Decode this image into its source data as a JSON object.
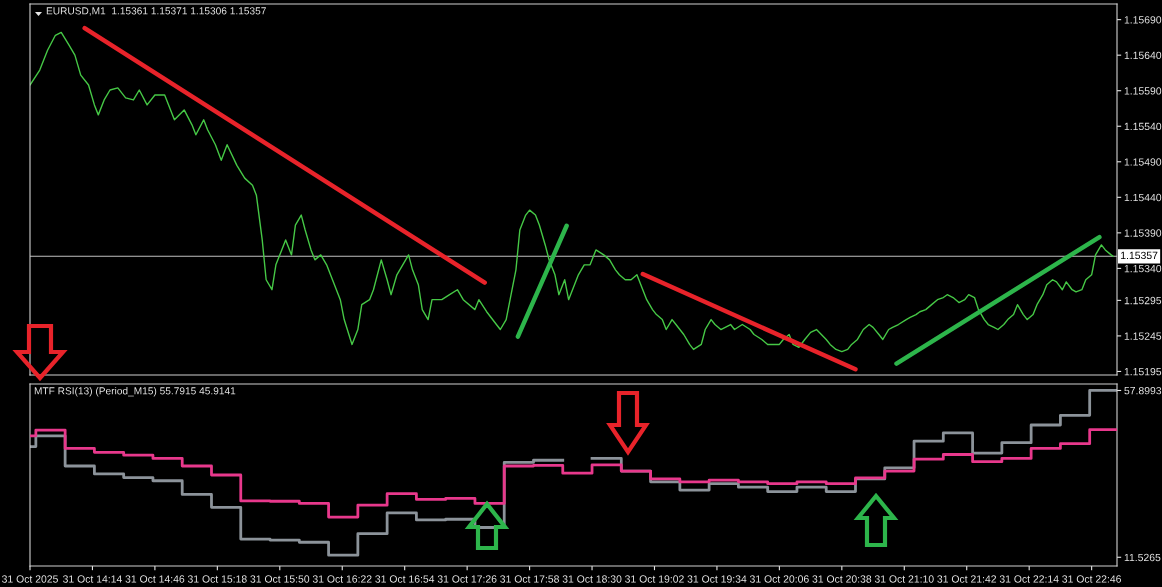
{
  "chart_data": [
    {
      "type": "line",
      "title": "EURUSD,M1  1.15361 1.15371 1.15306 1.15357",
      "tick_labels": "y",
      "grid": false,
      "marker": "none",
      "line_style": "solid",
      "xlim": [
        "2025-10-31T13:42",
        "2025-10-31T22:59"
      ],
      "ylim": [
        1.1519,
        1.15712
      ],
      "yticks": [
        {
          "value": 1.1569,
          "label": "1.15690"
        },
        {
          "value": 1.1564,
          "label": "1.15640"
        },
        {
          "value": 1.1559,
          "label": "1.15590"
        },
        {
          "value": 1.1554,
          "label": "1.15540"
        },
        {
          "value": 1.1549,
          "label": "1.15490"
        },
        {
          "value": 1.1544,
          "label": "1.15440"
        },
        {
          "value": 1.1539,
          "label": "1.15390"
        },
        {
          "value": 1.1534,
          "label": "1.15340"
        },
        {
          "value": 1.15295,
          "label": "1.15295"
        },
        {
          "value": 1.15245,
          "label": "1.15245"
        },
        {
          "value": 1.15195,
          "label": "1.15195"
        }
      ],
      "ref_lines": [
        {
          "axis": "y",
          "value": 1.15357,
          "label": "1.15357",
          "color": "#c0c0c0"
        }
      ],
      "series": [
        {
          "color": "#46c846",
          "x": [
            "2025-10-31T13:42",
            "2025-10-31T13:47",
            "2025-10-31T13:51",
            "2025-10-31T13:55",
            "2025-10-31T13:58",
            "2025-10-31T14:02",
            "2025-10-31T14:05",
            "2025-10-31T14:08",
            "2025-10-31T14:12",
            "2025-10-31T14:15",
            "2025-10-31T14:17",
            "2025-10-31T14:20",
            "2025-10-31T14:23",
            "2025-10-31T14:27",
            "2025-10-31T14:31",
            "2025-10-31T14:35",
            "2025-10-31T14:38",
            "2025-10-31T14:42",
            "2025-10-31T14:46",
            "2025-10-31T14:51",
            "2025-10-31T14:56",
            "2025-10-31T15:01",
            "2025-10-31T15:05",
            "2025-10-31T15:07",
            "2025-10-31T15:11",
            "2025-10-31T15:13",
            "2025-10-31T15:17",
            "2025-10-31T15:20",
            "2025-10-31T15:23",
            "2025-10-31T15:28",
            "2025-10-31T15:32",
            "2025-10-31T15:36",
            "2025-10-31T15:38",
            "2025-10-31T15:41",
            "2025-10-31T15:43",
            "2025-10-31T15:46",
            "2025-10-31T15:48",
            "2025-10-31T15:51",
            "2025-10-31T15:53",
            "2025-10-31T15:56",
            "2025-10-31T15:58",
            "2025-10-31T16:01",
            "2025-10-31T16:03",
            "2025-10-31T16:06",
            "2025-10-31T16:08",
            "2025-10-31T16:11",
            "2025-10-31T16:14",
            "2025-10-31T16:17",
            "2025-10-31T16:21",
            "2025-10-31T16:23",
            "2025-10-31T16:27",
            "2025-10-31T16:30",
            "2025-10-31T16:32",
            "2025-10-31T16:36",
            "2025-10-31T16:38",
            "2025-10-31T16:42",
            "2025-10-31T16:45",
            "2025-10-31T16:47",
            "2025-10-31T16:50",
            "2025-10-31T16:53",
            "2025-10-31T16:56",
            "2025-10-31T16:58",
            "2025-10-31T17:01",
            "2025-10-31T17:03",
            "2025-10-31T17:06",
            "2025-10-31T17:08",
            "2025-10-31T17:13",
            "2025-10-31T17:17",
            "2025-10-31T17:21",
            "2025-10-31T17:24",
            "2025-10-31T17:30",
            "2025-10-31T17:32",
            "2025-10-31T17:36",
            "2025-10-31T17:41",
            "2025-10-31T17:43",
            "2025-10-31T17:46",
            "2025-10-31T17:48",
            "2025-10-31T17:51",
            "2025-10-31T17:53",
            "2025-10-31T17:56",
            "2025-10-31T17:58",
            "2025-10-31T18:01",
            "2025-10-31T18:03",
            "2025-10-31T18:06",
            "2025-10-31T18:08",
            "2025-10-31T18:11",
            "2025-10-31T18:13",
            "2025-10-31T18:16",
            "2025-10-31T18:18",
            "2025-10-31T18:21",
            "2025-10-31T18:23",
            "2025-10-31T18:26",
            "2025-10-31T18:29",
            "2025-10-31T18:32",
            "2025-10-31T18:36",
            "2025-10-31T18:39",
            "2025-10-31T18:42",
            "2025-10-31T18:44",
            "2025-10-31T18:47",
            "2025-10-31T18:50",
            "2025-10-31T18:53",
            "2025-10-31T18:56",
            "2025-10-31T18:58",
            "2025-10-31T19:01",
            "2025-10-31T19:03",
            "2025-10-31T19:06",
            "2025-10-31T19:08",
            "2025-10-31T19:11",
            "2025-10-31T19:13",
            "2025-10-31T19:17",
            "2025-10-31T19:20",
            "2025-10-31T19:22",
            "2025-10-31T19:26",
            "2025-10-31T19:28",
            "2025-10-31T19:31",
            "2025-10-31T19:33",
            "2025-10-31T19:36",
            "2025-10-31T19:41",
            "2025-10-31T19:43",
            "2025-10-31T19:47",
            "2025-10-31T19:51",
            "2025-10-31T19:53",
            "2025-10-31T19:57",
            "2025-10-31T20:00",
            "2025-10-31T20:06",
            "2025-10-31T20:08",
            "2025-10-31T20:11",
            "2025-10-31T20:13",
            "2025-10-31T20:16",
            "2025-10-31T20:19",
            "2025-10-31T20:22",
            "2025-10-31T20:25",
            "2025-10-31T20:30",
            "2025-10-31T20:32",
            "2025-10-31T20:35",
            "2025-10-31T20:38",
            "2025-10-31T20:41",
            "2025-10-31T20:43",
            "2025-10-31T20:46",
            "2025-10-31T20:49",
            "2025-10-31T20:52",
            "2025-10-31T20:54",
            "2025-10-31T20:57",
            "2025-10-31T20:59",
            "2025-10-31T21:02",
            "2025-10-31T21:04",
            "2025-10-31T21:07",
            "2025-10-31T21:11",
            "2025-10-31T21:13",
            "2025-10-31T21:16",
            "2025-10-31T21:18",
            "2025-10-31T21:21",
            "2025-10-31T21:24",
            "2025-10-31T21:27",
            "2025-10-31T21:30",
            "2025-10-31T21:32",
            "2025-10-31T21:35",
            "2025-10-31T21:38",
            "2025-10-31T21:41",
            "2025-10-31T21:43",
            "2025-10-31T21:46",
            "2025-10-31T21:48",
            "2025-10-31T21:51",
            "2025-10-31T21:53",
            "2025-10-31T21:56",
            "2025-10-31T21:58",
            "2025-10-31T22:01",
            "2025-10-31T22:03",
            "2025-10-31T22:06",
            "2025-10-31T22:08",
            "2025-10-31T22:11",
            "2025-10-31T22:13",
            "2025-10-31T22:16",
            "2025-10-31T22:18",
            "2025-10-31T22:21",
            "2025-10-31T22:23",
            "2025-10-31T22:26",
            "2025-10-31T22:28",
            "2025-10-31T22:31",
            "2025-10-31T22:33",
            "2025-10-31T22:36",
            "2025-10-31T22:38",
            "2025-10-31T22:41",
            "2025-10-31T22:43",
            "2025-10-31T22:46",
            "2025-10-31T22:48",
            "2025-10-31T22:51",
            "2025-10-31T22:53",
            "2025-10-31T22:56",
            "2025-10-31T22:57"
          ],
          "values": [
            1.15598,
            1.15619,
            1.15647,
            1.15668,
            1.15672,
            1.15654,
            1.1564,
            1.15612,
            1.15598,
            1.1557,
            1.15556,
            1.15577,
            1.15591,
            1.15594,
            1.1558,
            1.15577,
            1.15591,
            1.1557,
            1.15584,
            1.15584,
            1.15549,
            1.15563,
            1.15542,
            1.15528,
            1.15549,
            1.15535,
            1.15514,
            1.15492,
            1.15514,
            1.15485,
            1.15467,
            1.15457,
            1.15443,
            1.1538,
            1.15324,
            1.1531,
            1.15345,
            1.15366,
            1.1538,
            1.15359,
            1.15401,
            1.15415,
            1.15394,
            1.15366,
            1.15352,
            1.15359,
            1.15345,
            1.15324,
            1.15296,
            1.15268,
            1.15233,
            1.15254,
            1.15289,
            1.15296,
            1.1531,
            1.15352,
            1.15324,
            1.15303,
            1.15331,
            1.15345,
            1.15359,
            1.15338,
            1.15317,
            1.15282,
            1.15268,
            1.15296,
            1.15296,
            1.15303,
            1.1531,
            1.15296,
            1.15282,
            1.15296,
            1.15279,
            1.15261,
            1.15254,
            1.15268,
            1.15296,
            1.15338,
            1.15394,
            1.15415,
            1.15422,
            1.15415,
            1.15401,
            1.15373,
            1.15352,
            1.15331,
            1.15303,
            1.15324,
            1.15296,
            1.15317,
            1.15331,
            1.15345,
            1.15345,
            1.15366,
            1.15359,
            1.15352,
            1.15338,
            1.15331,
            1.15324,
            1.15324,
            1.15331,
            1.1531,
            1.15296,
            1.15282,
            1.15275,
            1.15268,
            1.15254,
            1.15268,
            1.15261,
            1.15247,
            1.15233,
            1.15226,
            1.15233,
            1.15254,
            1.15268,
            1.15261,
            1.15254,
            1.15261,
            1.15254,
            1.15261,
            1.15254,
            1.15247,
            1.1524,
            1.15233,
            1.15233,
            1.1524,
            1.15247,
            1.15233,
            1.15229,
            1.1524,
            1.1525,
            1.15254,
            1.1524,
            1.15233,
            1.15226,
            1.15223,
            1.15226,
            1.15233,
            1.1524,
            1.15254,
            1.15261,
            1.15257,
            1.15247,
            1.1524,
            1.15254,
            1.15257,
            1.15261,
            1.15268,
            1.15271,
            1.15275,
            1.15279,
            1.15282,
            1.15289,
            1.15296,
            1.15299,
            1.15303,
            1.15299,
            1.15292,
            1.15296,
            1.15303,
            1.15299,
            1.15282,
            1.15268,
            1.15261,
            1.15257,
            1.15254,
            1.15261,
            1.15268,
            1.15275,
            1.15289,
            1.15275,
            1.15268,
            1.15275,
            1.15289,
            1.15303,
            1.15317,
            1.15324,
            1.15321,
            1.1531,
            1.15321,
            1.1531,
            1.15307,
            1.1531,
            1.15324,
            1.15331,
            1.15359,
            1.15373,
            1.15366,
            1.15359,
            1.15357
          ]
        },
        {
          "type": "line",
          "color": "#e8232a",
          "x": [
            "2025-10-31T14:10",
            "2025-10-31T17:35"
          ],
          "values": [
            1.15678,
            1.1532
          ]
        },
        {
          "type": "line",
          "color": "#2db54b",
          "x": [
            "2025-10-31T17:52",
            "2025-10-31T18:17"
          ],
          "values": [
            1.15244,
            1.154
          ]
        },
        {
          "type": "line",
          "color": "#e8232a",
          "x": [
            "2025-10-31T18:56",
            "2025-10-31T20:45"
          ],
          "values": [
            1.15332,
            1.15198
          ]
        },
        {
          "type": "line",
          "color": "#2db54b",
          "x": [
            "2025-10-31T21:06",
            "2025-10-31T22:50"
          ],
          "values": [
            1.15206,
            1.15384
          ]
        }
      ]
    },
    {
      "type": "step",
      "title": "MTF RSI(13) (Period_M15) 55.7915 45.9141",
      "grid": false,
      "marker": "none",
      "line_style": "solid",
      "xlim": [
        "2025-10-31T13:42",
        "2025-10-31T22:59"
      ],
      "xticks": [
        {
          "value": "2025-10-31T13:42",
          "label": "31 Oct 2025"
        },
        {
          "value": "2025-10-31T14:14",
          "label": "31 Oct 14:14"
        },
        {
          "value": "2025-10-31T14:46",
          "label": "31 Oct 14:46"
        },
        {
          "value": "2025-10-31T15:18",
          "label": "31 Oct 15:18"
        },
        {
          "value": "2025-10-31T15:50",
          "label": "31 Oct 15:50"
        },
        {
          "value": "2025-10-31T16:22",
          "label": "31 Oct 16:22"
        },
        {
          "value": "2025-10-31T16:54",
          "label": "31 Oct 16:54"
        },
        {
          "value": "2025-10-31T17:26",
          "label": "31 Oct 17:26"
        },
        {
          "value": "2025-10-31T17:58",
          "label": "31 Oct 17:58"
        },
        {
          "value": "2025-10-31T18:30",
          "label": "31 Oct 18:30"
        },
        {
          "value": "2025-10-31T19:02",
          "label": "31 Oct 19:02"
        },
        {
          "value": "2025-10-31T19:34",
          "label": "31 Oct 19:34"
        },
        {
          "value": "2025-10-31T20:06",
          "label": "31 Oct 20:06"
        },
        {
          "value": "2025-10-31T20:38",
          "label": "31 Oct 20:38"
        },
        {
          "value": "2025-10-31T21:10",
          "label": "31 Oct 21:10"
        },
        {
          "value": "2025-10-31T21:42",
          "label": "31 Oct 21:42"
        },
        {
          "value": "2025-10-31T22:14",
          "label": "31 Oct 22:14"
        },
        {
          "value": "2025-10-31T22:46",
          "label": "31 Oct 22:46"
        }
      ],
      "ylim": [
        9.1,
        59.7
      ],
      "yticks": [
        11.5265,
        57.8993
      ],
      "x": [
        "2025-10-31T13:42",
        "2025-10-31T13:45",
        "2025-10-31T14:00",
        "2025-10-31T14:15",
        "2025-10-31T14:30",
        "2025-10-31T14:45",
        "2025-10-31T15:00",
        "2025-10-31T15:15",
        "2025-10-31T15:30",
        "2025-10-31T15:45",
        "2025-10-31T16:00",
        "2025-10-31T16:15",
        "2025-10-31T16:30",
        "2025-10-31T16:45",
        "2025-10-31T17:00",
        "2025-10-31T17:15",
        "2025-10-31T17:30",
        "2025-10-31T17:45",
        "2025-10-31T18:00",
        "2025-10-31T18:15",
        "2025-10-31T18:30",
        "2025-10-31T18:45",
        "2025-10-31T19:00",
        "2025-10-31T19:15",
        "2025-10-31T19:30",
        "2025-10-31T19:45",
        "2025-10-31T20:00",
        "2025-10-31T20:15",
        "2025-10-31T20:30",
        "2025-10-31T20:45",
        "2025-10-31T21:00",
        "2025-10-31T21:15",
        "2025-10-31T21:30",
        "2025-10-31T21:45",
        "2025-10-31T22:00",
        "2025-10-31T22:15",
        "2025-10-31T22:30",
        "2025-10-31T22:45",
        "2025-10-31T22:59"
      ],
      "series": [
        {
          "color": "#8c939a",
          "values": [
            42.3,
            45.3,
            36.9,
            34.7,
            33.7,
            32.8,
            29.0,
            25.4,
            16.6,
            16.3,
            15.7,
            12.1,
            18.1,
            23.9,
            21.9,
            22.1,
            19.8,
            37.9,
            38.5,
            null,
            39.0,
            35.5,
            32.5,
            30.2,
            32.0,
            31.0,
            29.8,
            31.0,
            29.8,
            33.3,
            36.4,
            43.8,
            46.1,
            40.5,
            43.4,
            48.3,
            51.0,
            57.9,
            57.9
          ]
        },
        {
          "color": "#e8388c",
          "values": [
            45.3,
            46.9,
            41.8,
            40.7,
            39.9,
            39.0,
            36.9,
            34.4,
            27.2,
            27.1,
            26.5,
            22.7,
            26.0,
            29.2,
            27.6,
            27.9,
            26.5,
            36.9,
            37.1,
            34.9,
            37.2,
            35.5,
            33.3,
            32.5,
            33.0,
            32.5,
            32.0,
            32.5,
            32.0,
            33.6,
            35.5,
            38.8,
            40.1,
            38.1,
            39.0,
            41.8,
            43.1,
            47.0,
            47.0
          ]
        }
      ]
    }
  ]
}
